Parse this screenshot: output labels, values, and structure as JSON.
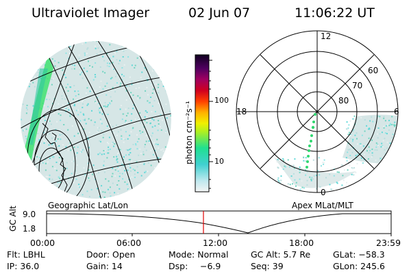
{
  "header": {
    "title": "Ultraviolet Imager",
    "date": "02 Jun 07",
    "time": "11:06:22 UT"
  },
  "colorbar": {
    "label": "photon cm⁻²s⁻¹",
    "ticks": [
      "100",
      "10"
    ]
  },
  "polar_plot": {
    "hour_labels": [
      "12",
      "18",
      "6",
      "0"
    ],
    "lat_labels": [
      "60",
      "70",
      "80"
    ]
  },
  "projection_labels": {
    "left": "Geographic Lat/Lon",
    "right": "Apex  MLat/MLT"
  },
  "timeline": {
    "ylabel": "GC Alt",
    "yticks": [
      "9.0",
      "1.8"
    ],
    "xticks": [
      "00:00",
      "06:00",
      "12:00",
      "18:00",
      "23:59"
    ],
    "current_marker_color": "#e00000"
  },
  "footer": {
    "filter": "Flt: LBHL",
    "door": "Door: Open",
    "mode": "Mode: Normal",
    "gc_alt": "GC Alt: 5.7 Re",
    "glat": "GLat: −58.3",
    "ip": "IP: 36.0",
    "gain": "Gain: 14",
    "dsp_label": "Dsp:",
    "dsp_value": "−6.9",
    "seq": "Seq: 39",
    "glon": "GLon: 245.6"
  },
  "colors": {
    "aurora_cyan": "#5fd8d8",
    "aurora_green": "#30d860",
    "pale": "#cfe0e0"
  }
}
